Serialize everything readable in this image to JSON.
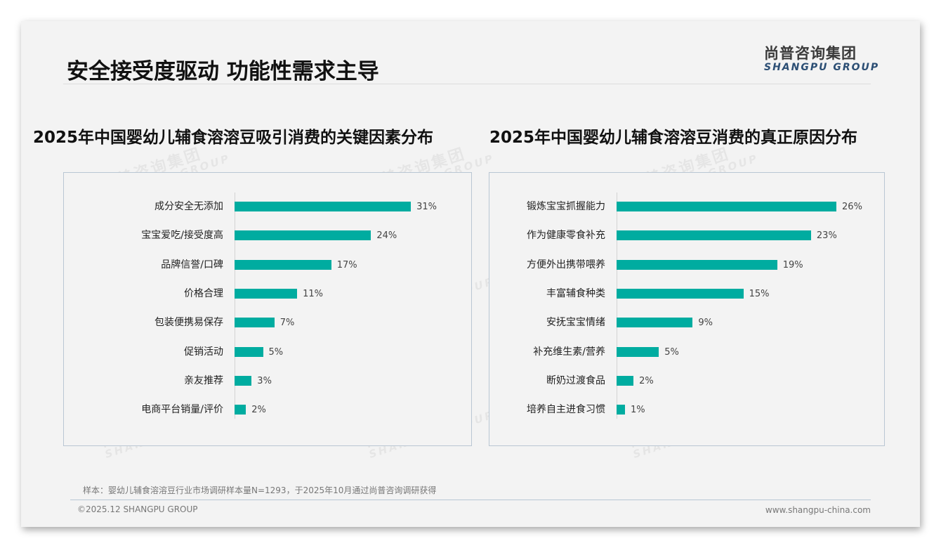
{
  "page": {
    "title": "安全接受度驱动 功能性需求主导",
    "logo_cn": "尚普咨询集团",
    "logo_en": "SHANGPU GROUP",
    "watermark_cn": "尚普咨询集团",
    "watermark_en": "SHANGPU GROUP",
    "footnote": "样本：婴幼儿辅食溶溶豆行业市场调研样本量N=1293，于2025年10月通过尚普咨询调研获得",
    "copyright": "©2025.12 SHANGPU GROUP",
    "website": "www.shangpu-china.com",
    "bar_color": "#00aca0"
  },
  "chart_data": [
    {
      "type": "bar",
      "orientation": "horizontal",
      "title": "2025年中国婴幼儿辅食溶溶豆吸引消费的关键因素分布",
      "categories": [
        "成分安全无添加",
        "宝宝爱吃/接受度高",
        "品牌信誉/口碑",
        "价格合理",
        "包装便携易保存",
        "促销活动",
        "亲友推荐",
        "电商平台销量/评价"
      ],
      "values": [
        31,
        24,
        17,
        11,
        7,
        5,
        3,
        2
      ],
      "labels": [
        "31%",
        "24%",
        "17%",
        "11%",
        "7%",
        "5%",
        "3%",
        "2%"
      ],
      "unit": "%",
      "xlabel": "",
      "ylabel": "",
      "grid": false,
      "legend": "none"
    },
    {
      "type": "bar",
      "orientation": "horizontal",
      "title": "2025年中国婴幼儿辅食溶溶豆消费的真正原因分布",
      "categories": [
        "锻炼宝宝抓握能力",
        "作为健康零食补充",
        "方便外出携带喂养",
        "丰富辅食种类",
        "安抚宝宝情绪",
        "补充维生素/营养",
        "断奶过渡食品",
        "培养自主进食习惯"
      ],
      "values": [
        26,
        23,
        19,
        15,
        9,
        5,
        2,
        1
      ],
      "labels": [
        "26%",
        "23%",
        "19%",
        "15%",
        "9%",
        "5%",
        "2%",
        "1%"
      ],
      "unit": "%",
      "xlabel": "",
      "ylabel": "",
      "grid": false,
      "legend": "none"
    }
  ]
}
